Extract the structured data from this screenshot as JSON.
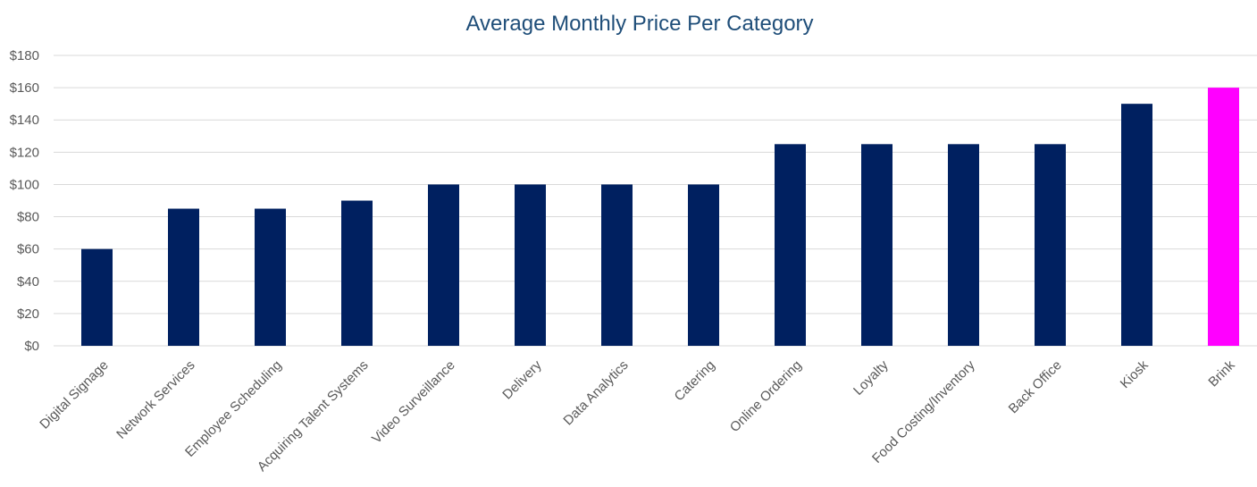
{
  "chart_data": {
    "type": "bar",
    "title": "Average Monthly Price Per Category",
    "xlabel": "",
    "ylabel": "",
    "categories": [
      "Digital Signage",
      "Network Services",
      "Employee Scheduling",
      "Acquiring Talent Systems",
      "Video Surveillance",
      "Delivery",
      "Data Analytics",
      "Catering",
      "Online Ordering",
      "Loyalty",
      "Food Costing/Inventory",
      "Back Office",
      "Kiosk",
      "Brink"
    ],
    "values": [
      60,
      85,
      85,
      90,
      100,
      100,
      100,
      100,
      125,
      125,
      125,
      125,
      150,
      160
    ],
    "ylim": [
      0,
      180
    ],
    "y_ticks": [
      "$0",
      "$20",
      "$40",
      "$60",
      "$80",
      "$100",
      "$120",
      "$140",
      "$160",
      "$180"
    ],
    "grid": true,
    "legend": "none",
    "colors": {
      "bar": "#002060",
      "highlight": "#ff00ff",
      "title": "#1f4e79",
      "grid": "#d9d9d9",
      "tick": "#595959"
    },
    "highlight_category": "Brink"
  }
}
